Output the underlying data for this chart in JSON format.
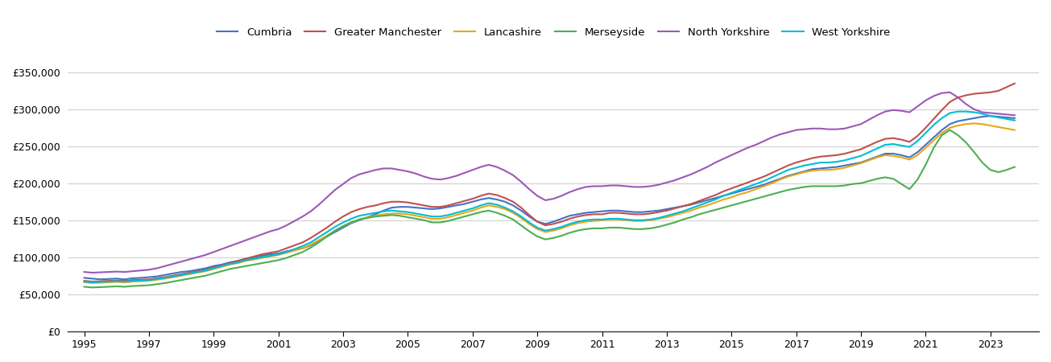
{
  "years": [
    1995.0,
    1995.25,
    1995.5,
    1995.75,
    1996.0,
    1996.25,
    1996.5,
    1996.75,
    1997.0,
    1997.25,
    1997.5,
    1997.75,
    1998.0,
    1998.25,
    1998.5,
    1998.75,
    1999.0,
    1999.25,
    1999.5,
    1999.75,
    2000.0,
    2000.25,
    2000.5,
    2000.75,
    2001.0,
    2001.25,
    2001.5,
    2001.75,
    2002.0,
    2002.25,
    2002.5,
    2002.75,
    2003.0,
    2003.25,
    2003.5,
    2003.75,
    2004.0,
    2004.25,
    2004.5,
    2004.75,
    2005.0,
    2005.25,
    2005.5,
    2005.75,
    2006.0,
    2006.25,
    2006.5,
    2006.75,
    2007.0,
    2007.25,
    2007.5,
    2007.75,
    2008.0,
    2008.25,
    2008.5,
    2008.75,
    2009.0,
    2009.25,
    2009.5,
    2009.75,
    2010.0,
    2010.25,
    2010.5,
    2010.75,
    2011.0,
    2011.25,
    2011.5,
    2011.75,
    2012.0,
    2012.25,
    2012.5,
    2012.75,
    2013.0,
    2013.25,
    2013.5,
    2013.75,
    2014.0,
    2014.25,
    2014.5,
    2014.75,
    2015.0,
    2015.25,
    2015.5,
    2015.75,
    2016.0,
    2016.25,
    2016.5,
    2016.75,
    2017.0,
    2017.25,
    2017.5,
    2017.75,
    2018.0,
    2018.25,
    2018.5,
    2018.75,
    2019.0,
    2019.25,
    2019.5,
    2019.75,
    2020.0,
    2020.25,
    2020.5,
    2020.75,
    2021.0,
    2021.25,
    2021.5,
    2021.75,
    2022.0,
    2022.25,
    2022.5,
    2022.75,
    2023.0,
    2023.25,
    2023.5,
    2023.75
  ],
  "series": {
    "Cumbria": [
      72000,
      71000,
      70000,
      70500,
      71000,
      70000,
      71500,
      72000,
      73000,
      74000,
      76000,
      78000,
      80000,
      81000,
      83000,
      85000,
      88000,
      90000,
      93000,
      95000,
      98000,
      100000,
      102000,
      104000,
      105000,
      108000,
      110000,
      112000,
      116000,
      122000,
      128000,
      134000,
      140000,
      146000,
      150000,
      154000,
      158000,
      163000,
      167000,
      168000,
      168000,
      167000,
      166000,
      165000,
      166000,
      168000,
      170000,
      172000,
      175000,
      178000,
      180000,
      178000,
      175000,
      170000,
      163000,
      155000,
      148000,
      145000,
      148000,
      152000,
      156000,
      158000,
      160000,
      161000,
      162000,
      163000,
      163000,
      162000,
      161000,
      161000,
      162000,
      163000,
      165000,
      167000,
      169000,
      171000,
      174000,
      177000,
      180000,
      183000,
      186000,
      189000,
      192000,
      195000,
      198000,
      202000,
      206000,
      210000,
      213000,
      216000,
      219000,
      220000,
      221000,
      222000,
      224000,
      226000,
      228000,
      232000,
      236000,
      240000,
      240000,
      238000,
      235000,
      242000,
      252000,
      262000,
      272000,
      280000,
      284000,
      286000,
      288000,
      290000,
      291000,
      290000,
      289000,
      288000
    ],
    "Greater Manchester": [
      68000,
      67000,
      67500,
      68000,
      68500,
      68000,
      69000,
      69500,
      70000,
      71500,
      73000,
      75000,
      77000,
      79000,
      81000,
      83000,
      86000,
      89000,
      92000,
      95000,
      98000,
      101000,
      104000,
      106000,
      108000,
      112000,
      116000,
      120000,
      126000,
      133000,
      140000,
      148000,
      155000,
      161000,
      165000,
      168000,
      170000,
      173000,
      175000,
      175000,
      174000,
      172000,
      170000,
      168000,
      168000,
      170000,
      173000,
      176000,
      179000,
      183000,
      186000,
      184000,
      180000,
      175000,
      167000,
      157000,
      148000,
      143000,
      145000,
      148000,
      152000,
      155000,
      157000,
      158000,
      158000,
      160000,
      160000,
      159000,
      158000,
      158000,
      159000,
      161000,
      163000,
      166000,
      169000,
      172000,
      176000,
      180000,
      184000,
      189000,
      193000,
      197000,
      201000,
      205000,
      209000,
      214000,
      219000,
      224000,
      228000,
      231000,
      234000,
      236000,
      237000,
      238000,
      240000,
      243000,
      246000,
      251000,
      256000,
      260000,
      261000,
      259000,
      256000,
      264000,
      275000,
      287000,
      299000,
      310000,
      316000,
      319000,
      321000,
      322000,
      323000,
      325000,
      330000,
      335000
    ],
    "Lancashire": [
      66000,
      65000,
      65500,
      66000,
      66500,
      66000,
      67000,
      67500,
      68000,
      69500,
      71000,
      73000,
      75000,
      77000,
      79000,
      81000,
      84000,
      87000,
      90000,
      92000,
      95000,
      97000,
      99000,
      101000,
      103000,
      106000,
      109000,
      112000,
      117000,
      123000,
      129000,
      136000,
      142000,
      147000,
      151000,
      154000,
      156000,
      158000,
      159000,
      159000,
      158000,
      156000,
      154000,
      152000,
      152000,
      154000,
      157000,
      160000,
      163000,
      167000,
      170000,
      168000,
      165000,
      160000,
      153000,
      145000,
      138000,
      134000,
      136000,
      139000,
      143000,
      146000,
      148000,
      149000,
      150000,
      151000,
      151000,
      150000,
      149000,
      149000,
      150000,
      152000,
      154000,
      157000,
      160000,
      163000,
      167000,
      170000,
      174000,
      178000,
      181000,
      185000,
      188000,
      192000,
      196000,
      200000,
      205000,
      209000,
      212000,
      215000,
      217000,
      218000,
      218000,
      219000,
      221000,
      224000,
      227000,
      231000,
      235000,
      238000,
      237000,
      235000,
      232000,
      238000,
      248000,
      258000,
      268000,
      275000,
      278000,
      280000,
      281000,
      280000,
      278000,
      276000,
      274000,
      272000
    ],
    "Merseyside": [
      60000,
      59000,
      59500,
      60000,
      60500,
      60000,
      61000,
      61500,
      62000,
      63500,
      65000,
      67000,
      69000,
      71000,
      73000,
      75000,
      78000,
      81000,
      84000,
      86000,
      88000,
      90000,
      92000,
      94000,
      96000,
      99000,
      103000,
      107000,
      113000,
      120000,
      128000,
      136000,
      142000,
      147000,
      151000,
      153000,
      155000,
      156000,
      157000,
      156000,
      154000,
      152000,
      150000,
      147000,
      147000,
      149000,
      152000,
      155000,
      158000,
      161000,
      163000,
      160000,
      156000,
      151000,
      143000,
      135000,
      128000,
      124000,
      126000,
      129000,
      133000,
      136000,
      138000,
      139000,
      139000,
      140000,
      140000,
      139000,
      138000,
      138000,
      139000,
      141000,
      144000,
      147000,
      151000,
      154000,
      158000,
      161000,
      164000,
      167000,
      170000,
      173000,
      176000,
      179000,
      182000,
      185000,
      188000,
      191000,
      193000,
      195000,
      196000,
      196000,
      196000,
      196000,
      197000,
      199000,
      200000,
      203000,
      206000,
      208000,
      206000,
      199000,
      192000,
      205000,
      225000,
      248000,
      265000,
      272000,
      265000,
      255000,
      242000,
      228000,
      218000,
      215000,
      218000,
      222000
    ],
    "North Yorkshire": [
      80000,
      79000,
      79500,
      80000,
      80500,
      80000,
      81000,
      82000,
      83000,
      85000,
      88000,
      91000,
      94000,
      97000,
      100000,
      103000,
      107000,
      111000,
      115000,
      119000,
      123000,
      127000,
      131000,
      135000,
      138000,
      143000,
      149000,
      155000,
      162000,
      171000,
      181000,
      191000,
      199000,
      207000,
      212000,
      215000,
      218000,
      220000,
      220000,
      218000,
      216000,
      213000,
      209000,
      206000,
      205000,
      207000,
      210000,
      214000,
      218000,
      222000,
      225000,
      222000,
      217000,
      211000,
      202000,
      192000,
      183000,
      177000,
      179000,
      183000,
      188000,
      192000,
      195000,
      196000,
      196000,
      197000,
      197000,
      196000,
      195000,
      195000,
      196000,
      198000,
      201000,
      204000,
      208000,
      212000,
      217000,
      222000,
      228000,
      233000,
      238000,
      243000,
      248000,
      252000,
      257000,
      262000,
      266000,
      269000,
      272000,
      273000,
      274000,
      274000,
      273000,
      273000,
      274000,
      277000,
      280000,
      286000,
      292000,
      297000,
      299000,
      298000,
      296000,
      304000,
      312000,
      318000,
      322000,
      323000,
      316000,
      307000,
      300000,
      296000,
      295000,
      294000,
      293000,
      292000
    ],
    "West Yorkshire": [
      67000,
      66000,
      66500,
      67000,
      67500,
      67000,
      68000,
      68500,
      69000,
      70500,
      72000,
      74000,
      76000,
      78000,
      80000,
      82000,
      85000,
      88000,
      91000,
      93000,
      96000,
      98000,
      100000,
      102000,
      104000,
      107000,
      111000,
      115000,
      120000,
      127000,
      134000,
      141000,
      147000,
      152000,
      156000,
      158000,
      160000,
      162000,
      163000,
      162000,
      161000,
      159000,
      157000,
      155000,
      155000,
      157000,
      160000,
      163000,
      166000,
      170000,
      173000,
      171000,
      167000,
      162000,
      155000,
      147000,
      140000,
      136000,
      138000,
      141000,
      145000,
      148000,
      150000,
      151000,
      151000,
      152000,
      152000,
      151000,
      150000,
      150000,
      151000,
      153000,
      156000,
      159000,
      162000,
      166000,
      170000,
      174000,
      178000,
      183000,
      187000,
      191000,
      195000,
      199000,
      203000,
      208000,
      213000,
      218000,
      221000,
      224000,
      226000,
      228000,
      228000,
      229000,
      231000,
      234000,
      237000,
      242000,
      247000,
      252000,
      253000,
      251000,
      249000,
      257000,
      268000,
      279000,
      288000,
      295000,
      297000,
      297000,
      296000,
      294000,
      291000,
      289000,
      287000,
      285000
    ]
  },
  "colors": {
    "Cumbria": "#4472C4",
    "Greater Manchester": "#C0504D",
    "Lancashire": "#E6A817",
    "Merseyside": "#4CAF50",
    "North Yorkshire": "#9B59B6",
    "West Yorkshire": "#00BCD4"
  },
  "ylim": [
    0,
    375000
  ],
  "yticks": [
    0,
    50000,
    100000,
    150000,
    200000,
    250000,
    300000,
    350000
  ],
  "xlim": [
    1994.5,
    2024.5
  ],
  "xticks": [
    1995,
    1997,
    1999,
    2001,
    2003,
    2005,
    2007,
    2009,
    2011,
    2013,
    2015,
    2017,
    2019,
    2021,
    2023
  ],
  "background_color": "#ffffff",
  "grid_color": "#d0d0d0",
  "line_width": 1.5
}
